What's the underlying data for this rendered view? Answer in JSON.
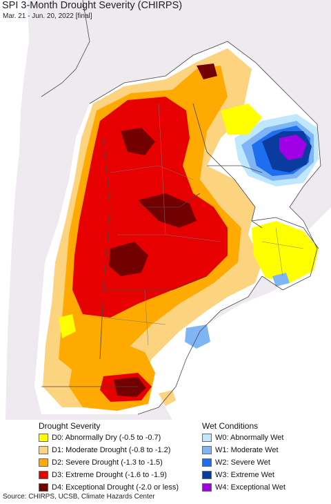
{
  "title": "SPI 3-Month Drought Severity (CHIRPS)",
  "subtitle": "Mar. 21 - Jun. 20, 2022 [final]",
  "legend": {
    "drought_heading": "Drought Severity",
    "wet_heading": "Wet Conditions",
    "drought": [
      {
        "label": "D0: Abnormally Dry (-0.5 to -0.7)",
        "color": "#ffff00"
      },
      {
        "label": "D1: Moderate Drought (-0.8 to -1.2)",
        "color": "#fcd37f"
      },
      {
        "label": "D2: Severe Drought (-1.3 to -1.5)",
        "color": "#ffaa00"
      },
      {
        "label": "D3: Extreme Drought (-1.6 to -1.9)",
        "color": "#e60000"
      },
      {
        "label": "D4: Exceptional Drought (-2.0 or less)",
        "color": "#730000"
      }
    ],
    "wet": [
      {
        "label": "W0: Abnormally Wet",
        "color": "#bfe8ff"
      },
      {
        "label": "W1: Moderate Wet",
        "color": "#7fb5f5"
      },
      {
        "label": "W2: Severe Wet",
        "color": "#1e6ef0"
      },
      {
        "label": "W3: Extreme Wet",
        "color": "#0a3ca0"
      },
      {
        "label": "W4: Exceptional Wet",
        "color": "#a000e6"
      }
    ]
  },
  "footer": "Source: CHIRPS, UCSB, Climate Hazards Center"
}
